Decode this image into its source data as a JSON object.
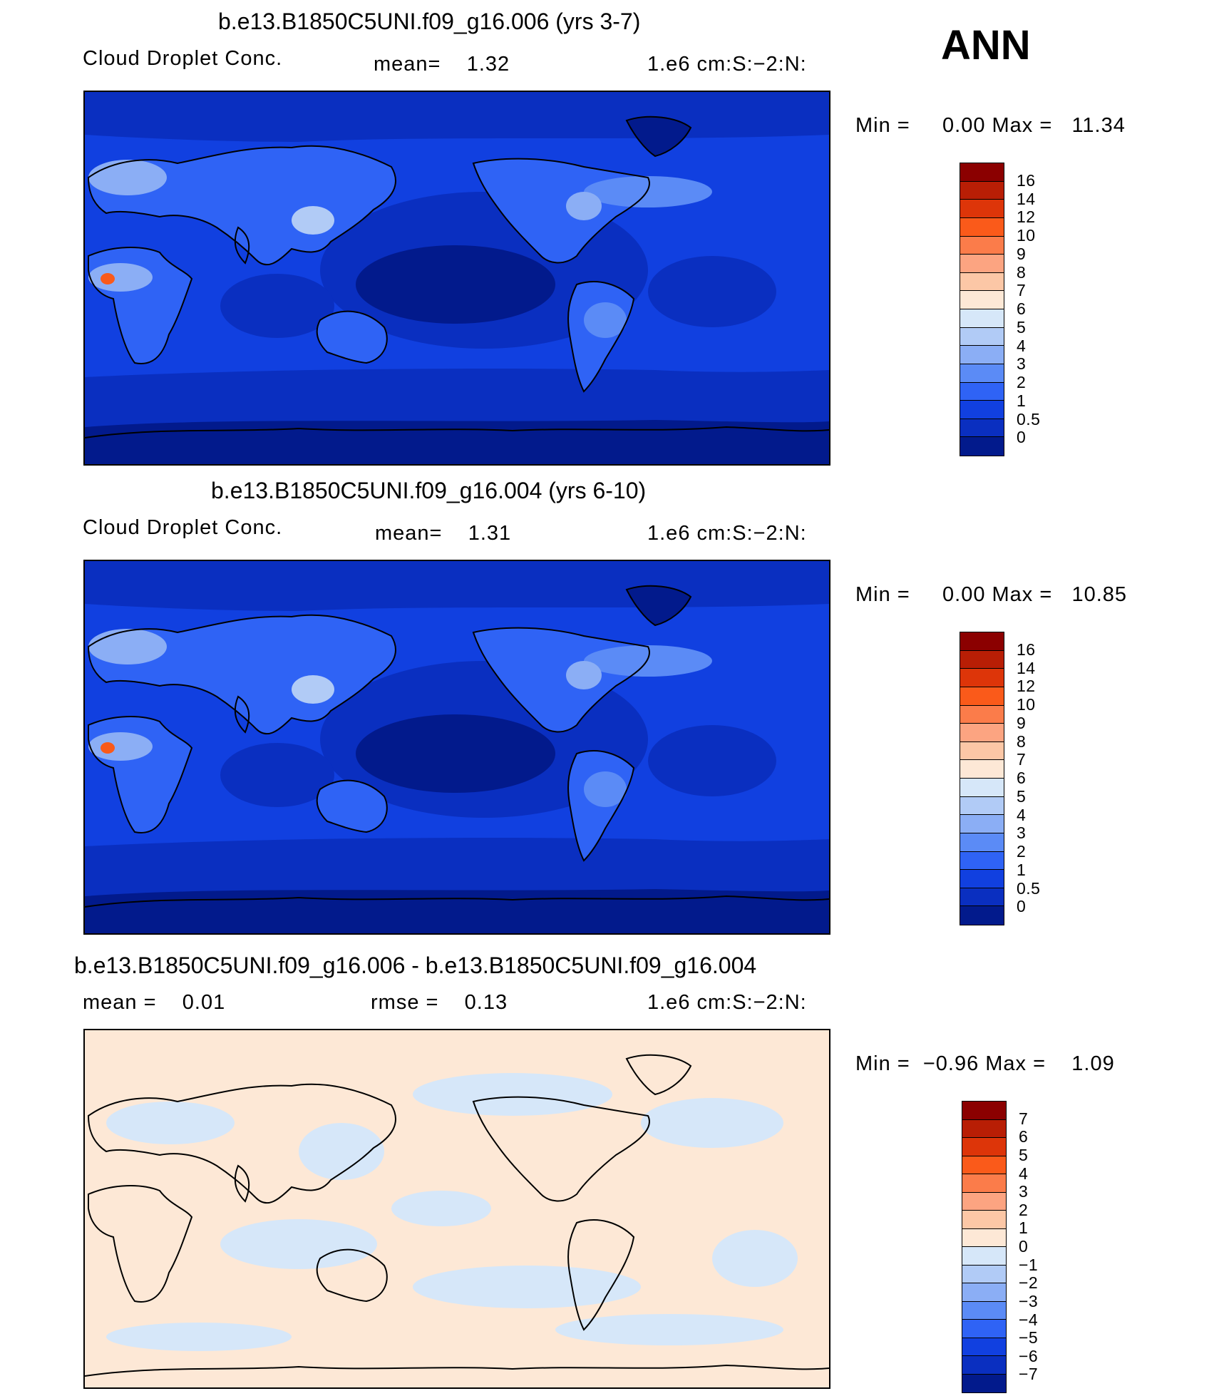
{
  "page": {
    "season_label": "ANN"
  },
  "panels": [
    {
      "id": "case1",
      "title": "b.e13.B1850C5UNI.f09_g16.006 (yrs 3-7)",
      "left_label": "Cloud Droplet Conc.",
      "middle_label": "mean=    1.32",
      "units": "1.e6 cm:S:−2:N:",
      "minmax": "Min =     0.00 Max =   11.34",
      "colorbar": {
        "labels": [
          "16",
          "14",
          "12",
          "10",
          "9",
          "8",
          "7",
          "6",
          "5",
          "4",
          "3",
          "2",
          "1",
          "0.5",
          "0"
        ],
        "colors": [
          "#8b0000",
          "#b81e05",
          "#dd3509",
          "#fa5a1a",
          "#fb7c4a",
          "#fca481",
          "#fcc7a6",
          "#fde8d6",
          "#d6e7f9",
          "#b1cbf6",
          "#8baef5",
          "#5b8bf6",
          "#2f63f5",
          "#1140e0",
          "#0a2fc0",
          "#021a8c"
        ]
      },
      "map_style": "abs"
    },
    {
      "id": "case2",
      "title": "b.e13.B1850C5UNI.f09_g16.004 (yrs 6-10)",
      "left_label": "Cloud Droplet Conc.",
      "middle_label": "mean=    1.31",
      "units": "1.e6 cm:S:−2:N:",
      "minmax": "Min =     0.00 Max =   10.85",
      "colorbar": {
        "labels": [
          "16",
          "14",
          "12",
          "10",
          "9",
          "8",
          "7",
          "6",
          "5",
          "4",
          "3",
          "2",
          "1",
          "0.5",
          "0"
        ],
        "colors": [
          "#8b0000",
          "#b81e05",
          "#dd3509",
          "#fa5a1a",
          "#fb7c4a",
          "#fca481",
          "#fcc7a6",
          "#fde8d6",
          "#d6e7f9",
          "#b1cbf6",
          "#8baef5",
          "#5b8bf6",
          "#2f63f5",
          "#1140e0",
          "#0a2fc0",
          "#021a8c"
        ]
      },
      "map_style": "abs"
    },
    {
      "id": "diff",
      "title": "b.e13.B1850C5UNI.f09_g16.006 - b.e13.B1850C5UNI.f09_g16.004",
      "left_label": "mean =    0.01",
      "middle_label": "rmse =    0.13",
      "units": "1.e6 cm:S:−2:N:",
      "minmax": "Min =  −0.96 Max =    1.09",
      "colorbar": {
        "labels": [
          "7",
          "6",
          "5",
          "4",
          "3",
          "2",
          "1",
          "0",
          "−1",
          "−2",
          "−3",
          "−4",
          "−5",
          "−6",
          "−7"
        ],
        "colors": [
          "#8b0000",
          "#b81e05",
          "#dd3509",
          "#fa5a1a",
          "#fb7c4a",
          "#fca481",
          "#fcc7a6",
          "#fde8d6",
          "#d6e7f9",
          "#b1cbf6",
          "#8baef5",
          "#5b8bf6",
          "#2f63f5",
          "#1140e0",
          "#0a2fc0",
          "#021a8c"
        ]
      },
      "map_style": "diff"
    }
  ]
}
